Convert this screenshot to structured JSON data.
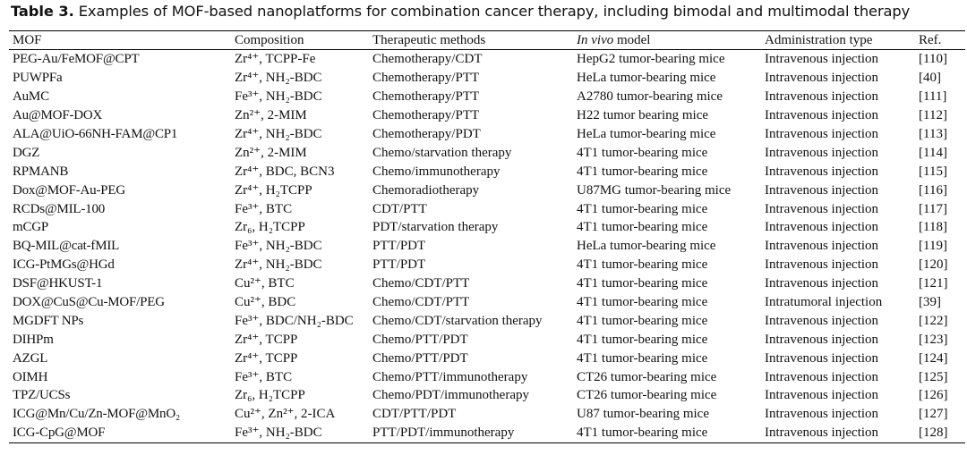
{
  "caption": {
    "label": "Table 3.",
    "text": " Examples of MOF-based nanoplatforms for combination cancer therapy, including bimodal and multimodal therapy"
  },
  "headers": {
    "mof": "MOF",
    "composition": "Composition",
    "therapeutic": "Therapeutic methods",
    "model_italic": "In vivo",
    "model_rest": " model",
    "administration": "Administration type",
    "ref": "Ref."
  },
  "rows": [
    {
      "mof": "PEG-Au/FeMOF@CPT",
      "composition": "Zr⁴⁺, TCPP-Fe",
      "therapeutic": "Chemotherapy/CDT",
      "model": "HepG2 tumor-bearing mice",
      "administration": "Intravenous injection",
      "ref": "[110]"
    },
    {
      "mof": "PUWPFa",
      "composition": "Zr⁴⁺, NH₂-BDC",
      "therapeutic": "Chemotherapy/PTT",
      "model": "HeLa tumor-bearing mice",
      "administration": "Intravenous injection",
      "ref": "[40]"
    },
    {
      "mof": "AuMC",
      "composition": "Fe³⁺, NH₂-BDC",
      "therapeutic": "Chemotherapy/PTT",
      "model": "A2780 tumor-bearing mice",
      "administration": "Intravenous injection",
      "ref": "[111]"
    },
    {
      "mof": "Au@MOF-DOX",
      "composition": "Zn²⁺, 2-MIM",
      "therapeutic": "Chemotherapy/PTT",
      "model": "H22 tumor bearing mice",
      "administration": "Intravenous injection",
      "ref": "[112]"
    },
    {
      "mof": "ALA@UiO-66NH-FAM@CP1",
      "composition": "Zr⁴⁺, NH₂-BDC",
      "therapeutic": "Chemotherapy/PDT",
      "model": "HeLa tumor-bearing mice",
      "administration": "Intravenous injection",
      "ref": "[113]"
    },
    {
      "mof": "DGZ",
      "composition": "Zn²⁺, 2-MIM",
      "therapeutic": "Chemo/starvation therapy",
      "model": "4T1 tumor-bearing mice",
      "administration": "Intravenous injection",
      "ref": "[114]"
    },
    {
      "mof": "RPMANB",
      "composition": "Zr⁴⁺, BDC, BCN3",
      "therapeutic": "Chemo/immunotherapy",
      "model": "4T1 tumor-bearing mice",
      "administration": "Intravenous injection",
      "ref": "[115]"
    },
    {
      "mof": "Dox@MOF-Au-PEG",
      "composition": "Zr⁴⁺, H₂TCPP",
      "therapeutic": "Chemoradiotherapy",
      "model": "U87MG tumor-bearing mice",
      "administration": "Intravenous injection",
      "ref": "[116]"
    },
    {
      "mof": "RCDs@MIL-100",
      "composition": "Fe³⁺, BTC",
      "therapeutic": "CDT/PTT",
      "model": "4T1 tumor-bearing mice",
      "administration": "Intravenous injection",
      "ref": "[117]"
    },
    {
      "mof": "mCGP",
      "composition": "Zr₆, H₂TCPP",
      "therapeutic": "PDT/starvation therapy",
      "model": "4T1 tumor-bearing mice",
      "administration": "Intravenous injection",
      "ref": "[118]"
    },
    {
      "mof": "BQ-MIL@cat-fMIL",
      "composition": "Fe³⁺, NH₂-BDC",
      "therapeutic": "PTT/PDT",
      "model": "HeLa tumor-bearing mice",
      "administration": "Intravenous injection",
      "ref": "[119]"
    },
    {
      "mof": "ICG-PtMGs@HGd",
      "composition": "Zr⁴⁺, NH₂-BDC",
      "therapeutic": "PTT/PDT",
      "model": "4T1 tumor-bearing mice",
      "administration": "Intravenous injection",
      "ref": "[120]"
    },
    {
      "mof": "DSF@HKUST-1",
      "composition": "Cu²⁺, BTC",
      "therapeutic": "Chemo/CDT/PTT",
      "model": "4T1 tumor-bearing mice",
      "administration": "Intravenous injection",
      "ref": "[121]"
    },
    {
      "mof": "DOX@CuS@Cu-MOF/PEG",
      "composition": "Cu²⁺, BDC",
      "therapeutic": "Chemo/CDT/PTT",
      "model": "4T1 tumor-bearing mice",
      "administration": "Intratumoral injection",
      "ref": "[39]"
    },
    {
      "mof": "MGDFT NPs",
      "composition": "Fe³⁺, BDC/NH₂-BDC",
      "therapeutic": "Chemo/CDT/starvation therapy",
      "model": "4T1 tumor-bearing mice",
      "administration": "Intravenous injection",
      "ref": "[122]"
    },
    {
      "mof": "DIHPm",
      "composition": "Zr⁴⁺, TCPP",
      "therapeutic": "Chemo/PTT/PDT",
      "model": "4T1 tumor-bearing mice",
      "administration": "Intravenous injection",
      "ref": "[123]"
    },
    {
      "mof": "AZGL",
      "composition": "Zr⁴⁺, TCPP",
      "therapeutic": "Chemo/PTT/PDT",
      "model": "4T1 tumor-bearing mice",
      "administration": "Intravenous injection",
      "ref": "[124]"
    },
    {
      "mof": "OIMH",
      "composition": "Fe³⁺, BTC",
      "therapeutic": "Chemo/PTT/immunotherapy",
      "model": "CT26 tumor-bearing mice",
      "administration": "Intravenous injection",
      "ref": "[125]"
    },
    {
      "mof": "TPZ/UCSs",
      "composition": "Zr₆, H₂TCPP",
      "therapeutic": "Chemo/PDT/immunotherapy",
      "model": "CT26 tumor-bearing mice",
      "administration": "Intravenous injection",
      "ref": "[126]"
    },
    {
      "mof": "ICG@Mn/Cu/Zn-MOF@MnO₂",
      "composition": "Cu²⁺, Zn²⁺, 2-ICA",
      "therapeutic": "CDT/PTT/PDT",
      "model": "U87 tumor-bearing mice",
      "administration": "Intravenous injection",
      "ref": "[127]"
    },
    {
      "mof": "ICG-CpG@MOF",
      "composition": "Fe³⁺, NH₂-BDC",
      "therapeutic": "PTT/PDT/immunotherapy",
      "model": "4T1 tumor-bearing mice",
      "administration": "Intravenous injection",
      "ref": "[128]"
    }
  ]
}
